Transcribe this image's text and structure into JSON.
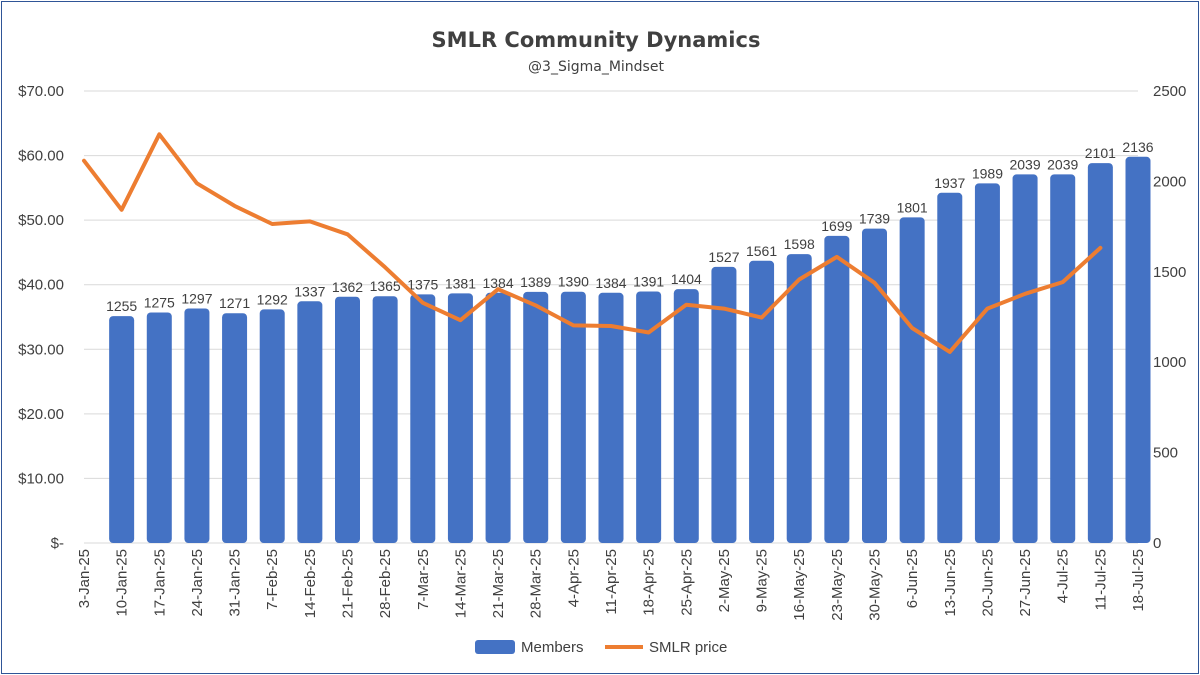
{
  "chart_data": {
    "type": "bar+line",
    "title": "SMLR Community Dynamics",
    "subtitle": "@3_Sigma_Mindset",
    "categories": [
      "3-Jan-25",
      "10-Jan-25",
      "17-Jan-25",
      "24-Jan-25",
      "31-Jan-25",
      "7-Feb-25",
      "14-Feb-25",
      "21-Feb-25",
      "28-Feb-25",
      "7-Mar-25",
      "14-Mar-25",
      "21-Mar-25",
      "28-Mar-25",
      "4-Apr-25",
      "11-Apr-25",
      "18-Apr-25",
      "25-Apr-25",
      "2-May-25",
      "9-May-25",
      "16-May-25",
      "23-May-25",
      "30-May-25",
      "6-Jun-25",
      "13-Jun-25",
      "20-Jun-25",
      "27-Jun-25",
      "4-Jul-25",
      "11-Jul-25",
      "18-Jul-25"
    ],
    "series": [
      {
        "name": "Members",
        "type": "bar",
        "axis": "right",
        "color": "#4472c4",
        "values": [
          null,
          1255,
          1275,
          1297,
          1271,
          1292,
          1337,
          1362,
          1365,
          1375,
          1381,
          1384,
          1389,
          1390,
          1384,
          1391,
          1404,
          1527,
          1561,
          1598,
          1699,
          1739,
          1801,
          1937,
          1989,
          2039,
          2039,
          2101,
          2136
        ]
      },
      {
        "name": "SMLR price",
        "type": "line",
        "axis": "left",
        "color": "#ed7d31",
        "values": [
          59.2,
          51.6,
          63.3,
          55.7,
          52.2,
          49.4,
          49.8,
          47.8,
          42.7,
          37.2,
          34.5,
          39.3,
          36.8,
          33.7,
          33.6,
          32.6,
          36.9,
          36.3,
          34.9,
          40.8,
          44.3,
          40.3,
          33.3,
          29.6,
          36.3,
          38.6,
          40.4,
          45.7,
          null
        ]
      }
    ],
    "y_left": {
      "min": 0,
      "max": 70,
      "ticks": [
        "$-",
        "$10.00",
        "$20.00",
        "$30.00",
        "$40.00",
        "$50.00",
        "$60.00",
        "$70.00"
      ]
    },
    "y_right": {
      "min": 0,
      "max": 2500,
      "ticks": [
        "0",
        "500",
        "1000",
        "1500",
        "2000",
        "2500"
      ]
    },
    "grid": true,
    "legend": "bottom",
    "legend_items": [
      "Members",
      "SMLR price"
    ]
  }
}
